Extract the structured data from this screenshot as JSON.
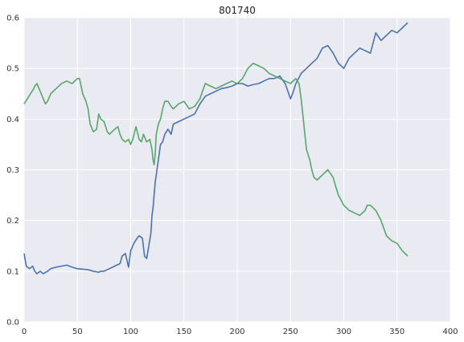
{
  "chart_data": {
    "type": "line",
    "title": "801740",
    "xlabel": "",
    "ylabel": "",
    "xlim": [
      0,
      400
    ],
    "ylim": [
      0.0,
      0.6
    ],
    "xticks": [
      0,
      50,
      100,
      150,
      200,
      250,
      300,
      350,
      400
    ],
    "yticks": [
      0.0,
      0.1,
      0.2,
      0.3,
      0.4,
      0.5,
      0.6
    ],
    "xtick_labels": [
      "0",
      "50",
      "100",
      "150",
      "200",
      "250",
      "300",
      "350",
      "400"
    ],
    "ytick_labels": [
      "0.0",
      "0.1",
      "0.2",
      "0.3",
      "0.4",
      "0.5",
      "0.6"
    ],
    "grid": true,
    "background": "#EAEAF2",
    "series": [
      {
        "color": "#4C72B0",
        "x": [
          0,
          2,
          5,
          8,
          10,
          12,
          15,
          18,
          22,
          25,
          30,
          35,
          40,
          45,
          50,
          55,
          60,
          65,
          70,
          72,
          75,
          80,
          85,
          90,
          92,
          95,
          98,
          100,
          103,
          106,
          108,
          111,
          113,
          115,
          117,
          119,
          120,
          121,
          122,
          123,
          124,
          126,
          128,
          130,
          132,
          135,
          138,
          140,
          145,
          150,
          155,
          160,
          165,
          170,
          175,
          180,
          185,
          190,
          195,
          200,
          205,
          210,
          215,
          220,
          225,
          230,
          235,
          240,
          245,
          250,
          252,
          255,
          260,
          265,
          270,
          275,
          280,
          285,
          290,
          295,
          300,
          305,
          310,
          315,
          320,
          325,
          330,
          335,
          340,
          345,
          350,
          355,
          360
        ],
        "y": [
          0.135,
          0.11,
          0.105,
          0.11,
          0.1,
          0.095,
          0.1,
          0.095,
          0.1,
          0.105,
          0.108,
          0.11,
          0.112,
          0.108,
          0.105,
          0.104,
          0.103,
          0.1,
          0.098,
          0.1,
          0.1,
          0.105,
          0.11,
          0.115,
          0.13,
          0.135,
          0.108,
          0.14,
          0.155,
          0.165,
          0.17,
          0.165,
          0.13,
          0.125,
          0.15,
          0.175,
          0.21,
          0.225,
          0.25,
          0.275,
          0.29,
          0.32,
          0.35,
          0.355,
          0.37,
          0.38,
          0.37,
          0.39,
          0.395,
          0.4,
          0.405,
          0.41,
          0.43,
          0.445,
          0.45,
          0.455,
          0.46,
          0.462,
          0.465,
          0.47,
          0.47,
          0.465,
          0.468,
          0.47,
          0.475,
          0.48,
          0.48,
          0.485,
          0.47,
          0.44,
          0.45,
          0.47,
          0.49,
          0.5,
          0.51,
          0.52,
          0.54,
          0.545,
          0.53,
          0.51,
          0.5,
          0.52,
          0.53,
          0.54,
          0.535,
          0.53,
          0.57,
          0.555,
          0.565,
          0.575,
          0.57,
          0.58,
          0.59
        ]
      },
      {
        "color": "#55A868",
        "x": [
          0,
          3,
          6,
          9,
          10,
          12,
          15,
          18,
          20,
          22,
          25,
          30,
          35,
          40,
          45,
          50,
          52,
          55,
          58,
          60,
          62,
          65,
          68,
          70,
          72,
          75,
          78,
          80,
          85,
          88,
          90,
          92,
          95,
          98,
          100,
          102,
          105,
          108,
          110,
          112,
          115,
          118,
          120,
          121,
          122,
          123,
          124,
          126,
          128,
          130,
          132,
          135,
          138,
          140,
          145,
          150,
          155,
          160,
          165,
          170,
          175,
          180,
          185,
          190,
          195,
          200,
          205,
          210,
          215,
          220,
          225,
          230,
          235,
          240,
          245,
          250,
          255,
          258,
          260,
          262,
          265,
          268,
          270,
          272,
          275,
          280,
          285,
          290,
          292,
          295,
          300,
          305,
          310,
          315,
          320,
          322,
          325,
          330,
          335,
          340,
          345,
          350,
          355,
          360
        ],
        "y": [
          0.43,
          0.44,
          0.45,
          0.46,
          0.465,
          0.47,
          0.455,
          0.44,
          0.43,
          0.435,
          0.45,
          0.46,
          0.47,
          0.475,
          0.47,
          0.48,
          0.48,
          0.45,
          0.435,
          0.42,
          0.39,
          0.375,
          0.38,
          0.41,
          0.4,
          0.395,
          0.375,
          0.37,
          0.38,
          0.385,
          0.37,
          0.36,
          0.355,
          0.36,
          0.35,
          0.36,
          0.385,
          0.36,
          0.355,
          0.37,
          0.355,
          0.36,
          0.34,
          0.32,
          0.31,
          0.33,
          0.37,
          0.39,
          0.4,
          0.42,
          0.435,
          0.435,
          0.425,
          0.42,
          0.43,
          0.435,
          0.42,
          0.425,
          0.44,
          0.47,
          0.465,
          0.46,
          0.465,
          0.47,
          0.475,
          0.47,
          0.48,
          0.5,
          0.51,
          0.505,
          0.5,
          0.49,
          0.485,
          0.48,
          0.475,
          0.47,
          0.48,
          0.47,
          0.44,
          0.4,
          0.34,
          0.32,
          0.3,
          0.285,
          0.28,
          0.29,
          0.3,
          0.285,
          0.27,
          0.25,
          0.23,
          0.22,
          0.215,
          0.21,
          0.22,
          0.23,
          0.23,
          0.22,
          0.2,
          0.17,
          0.16,
          0.155,
          0.14,
          0.13
        ]
      }
    ]
  }
}
